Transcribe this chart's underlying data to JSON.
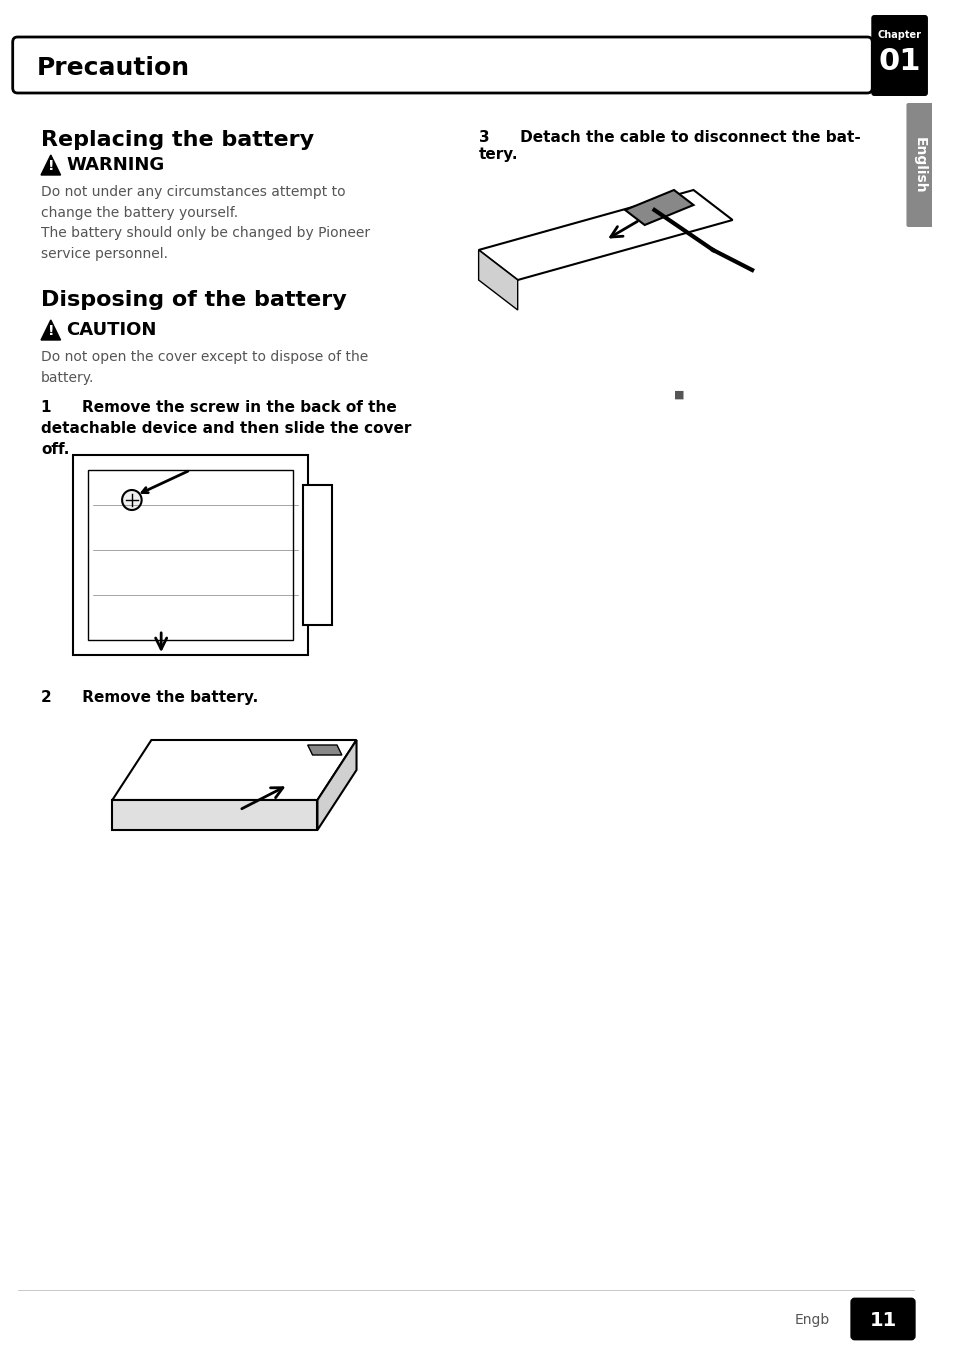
{
  "page_bg": "#ffffff",
  "header_text": "Precaution",
  "header_bg": "#000000",
  "header_text_color": "#ffffff",
  "chapter_label": "Chapter",
  "chapter_number": "01",
  "sidebar_text": "English",
  "sidebar_bg": "#888888",
  "section1_title": "Replacing the battery",
  "warning_label": "WARNING",
  "warning_text": "Do not under any circumstances attempt to\nchange the battery yourself.\nThe battery should only be changed by Pioneer\nservice personnel.",
  "section2_title": "Disposing of the battery",
  "caution_label": "CAUTION",
  "caution_text": "Do not open the cover except to dispose of the\nbattery.",
  "step1_text": "1  Remove the screw in the back of the\ndetachable device and then slide the cover\noff.",
  "step2_text": "2  Remove the battery.",
  "step3_text": "3  Detach the cable to disconnect the bat-\ntery.",
  "footer_text": "Engb",
  "footer_number": "11",
  "text_color": "#000000",
  "body_text_color": "#555555"
}
